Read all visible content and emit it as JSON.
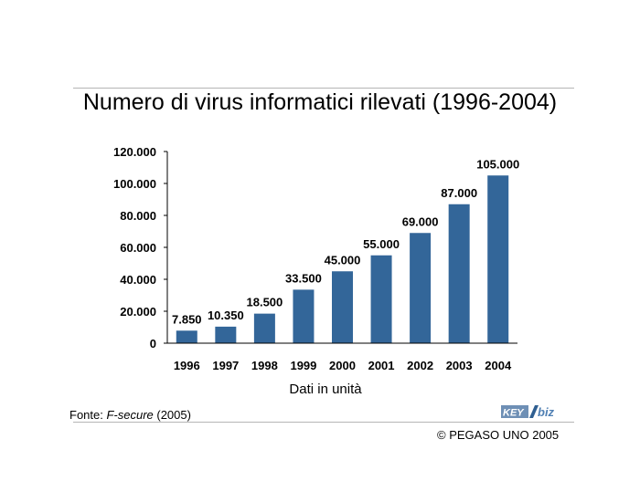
{
  "title": "Numero di virus informatici rilevati (1996-2004)",
  "xlabel": "Dati in unità",
  "source": {
    "prefix": "Fonte: ",
    "name": "F-secure",
    "suffix": " (2005)"
  },
  "copyright": "© PEGASO UNO 2005",
  "logo_text": "KEY4biz",
  "colors": {
    "bar": "#336699",
    "axis": "#000000",
    "rule": "#b5b5b5"
  },
  "chart_data": {
    "type": "bar",
    "title": "Numero di virus informatici rilevati (1996-2004)",
    "xlabel": "Dati in unità",
    "ylabel": "",
    "categories": [
      "1996",
      "1997",
      "1998",
      "1999",
      "2000",
      "2001",
      "2002",
      "2003",
      "2004"
    ],
    "values": [
      7850,
      10350,
      18500,
      33500,
      45000,
      55000,
      69000,
      87000,
      105000
    ],
    "value_labels": [
      "7.850",
      "10.350",
      "18.500",
      "33.500",
      "45.000",
      "55.000",
      "69.000",
      "87.000",
      "105.000"
    ],
    "ylim": [
      0,
      120000
    ],
    "yticks": [
      0,
      20000,
      40000,
      60000,
      80000,
      100000,
      120000
    ],
    "ytick_labels": [
      "0",
      "20.000",
      "40.000",
      "60.000",
      "80.000",
      "100.000",
      "120.000"
    ],
    "grid": false,
    "legend": "none"
  }
}
